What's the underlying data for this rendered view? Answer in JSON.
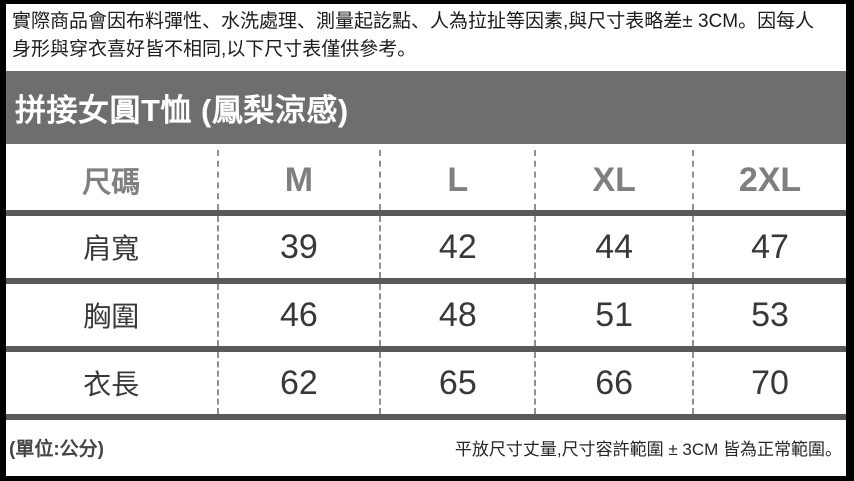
{
  "header": {
    "disclaimer": "實際商品會因布料彈性、水洗處理、測量起訖點、人為拉扯等因素,與尺寸表略差± 3CM。因每人\n身形與穿衣喜好皆不相同,以下尺寸表僅供參考。",
    "title": "拼接女圓T恤 (鳳梨涼感)"
  },
  "chart_data": {
    "type": "table",
    "title": "拼接女圓T恤 (鳳梨涼感)",
    "unit": "公分",
    "columns": [
      "尺碼",
      "M",
      "L",
      "XL",
      "2XL"
    ],
    "rows": [
      [
        "肩寬",
        "39",
        "42",
        "44",
        "47"
      ],
      [
        "胸圍",
        "46",
        "48",
        "51",
        "53"
      ],
      [
        "衣長",
        "62",
        "65",
        "66",
        "70"
      ]
    ]
  },
  "footer": {
    "unit": "(單位:公分)",
    "note": "平放尺寸丈量,尺寸容許範圍 ± 3CM 皆為正常範圍。"
  },
  "colors": {
    "title_band": "#6e6e6e",
    "header_text": "#7f7f7f",
    "divider": "#595959",
    "dashed_divider": "#909090",
    "data_text": "#383838"
  }
}
